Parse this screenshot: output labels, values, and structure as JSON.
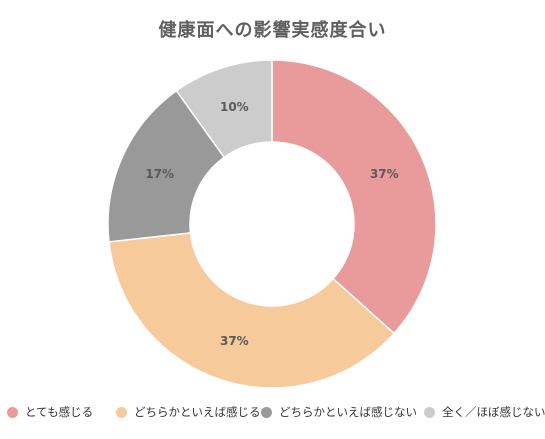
{
  "chart_data": {
    "type": "pie",
    "title": "健康面への影響実感度合い",
    "donut": true,
    "categories": [
      "とても感じる",
      "どちらかといえば感じる",
      "どちらかといえば感じない",
      "全く／ほぼ感じない"
    ],
    "values": [
      37,
      37,
      17,
      10
    ],
    "labels": [
      "37%",
      "37%",
      "17%",
      "10%"
    ],
    "colors": [
      "#e99a9b",
      "#f7ca9c",
      "#999999",
      "#cccccc"
    ],
    "label_color": "#5a5a5a",
    "legend_position": "bottom",
    "start": "top",
    "direction": "clockwise"
  }
}
